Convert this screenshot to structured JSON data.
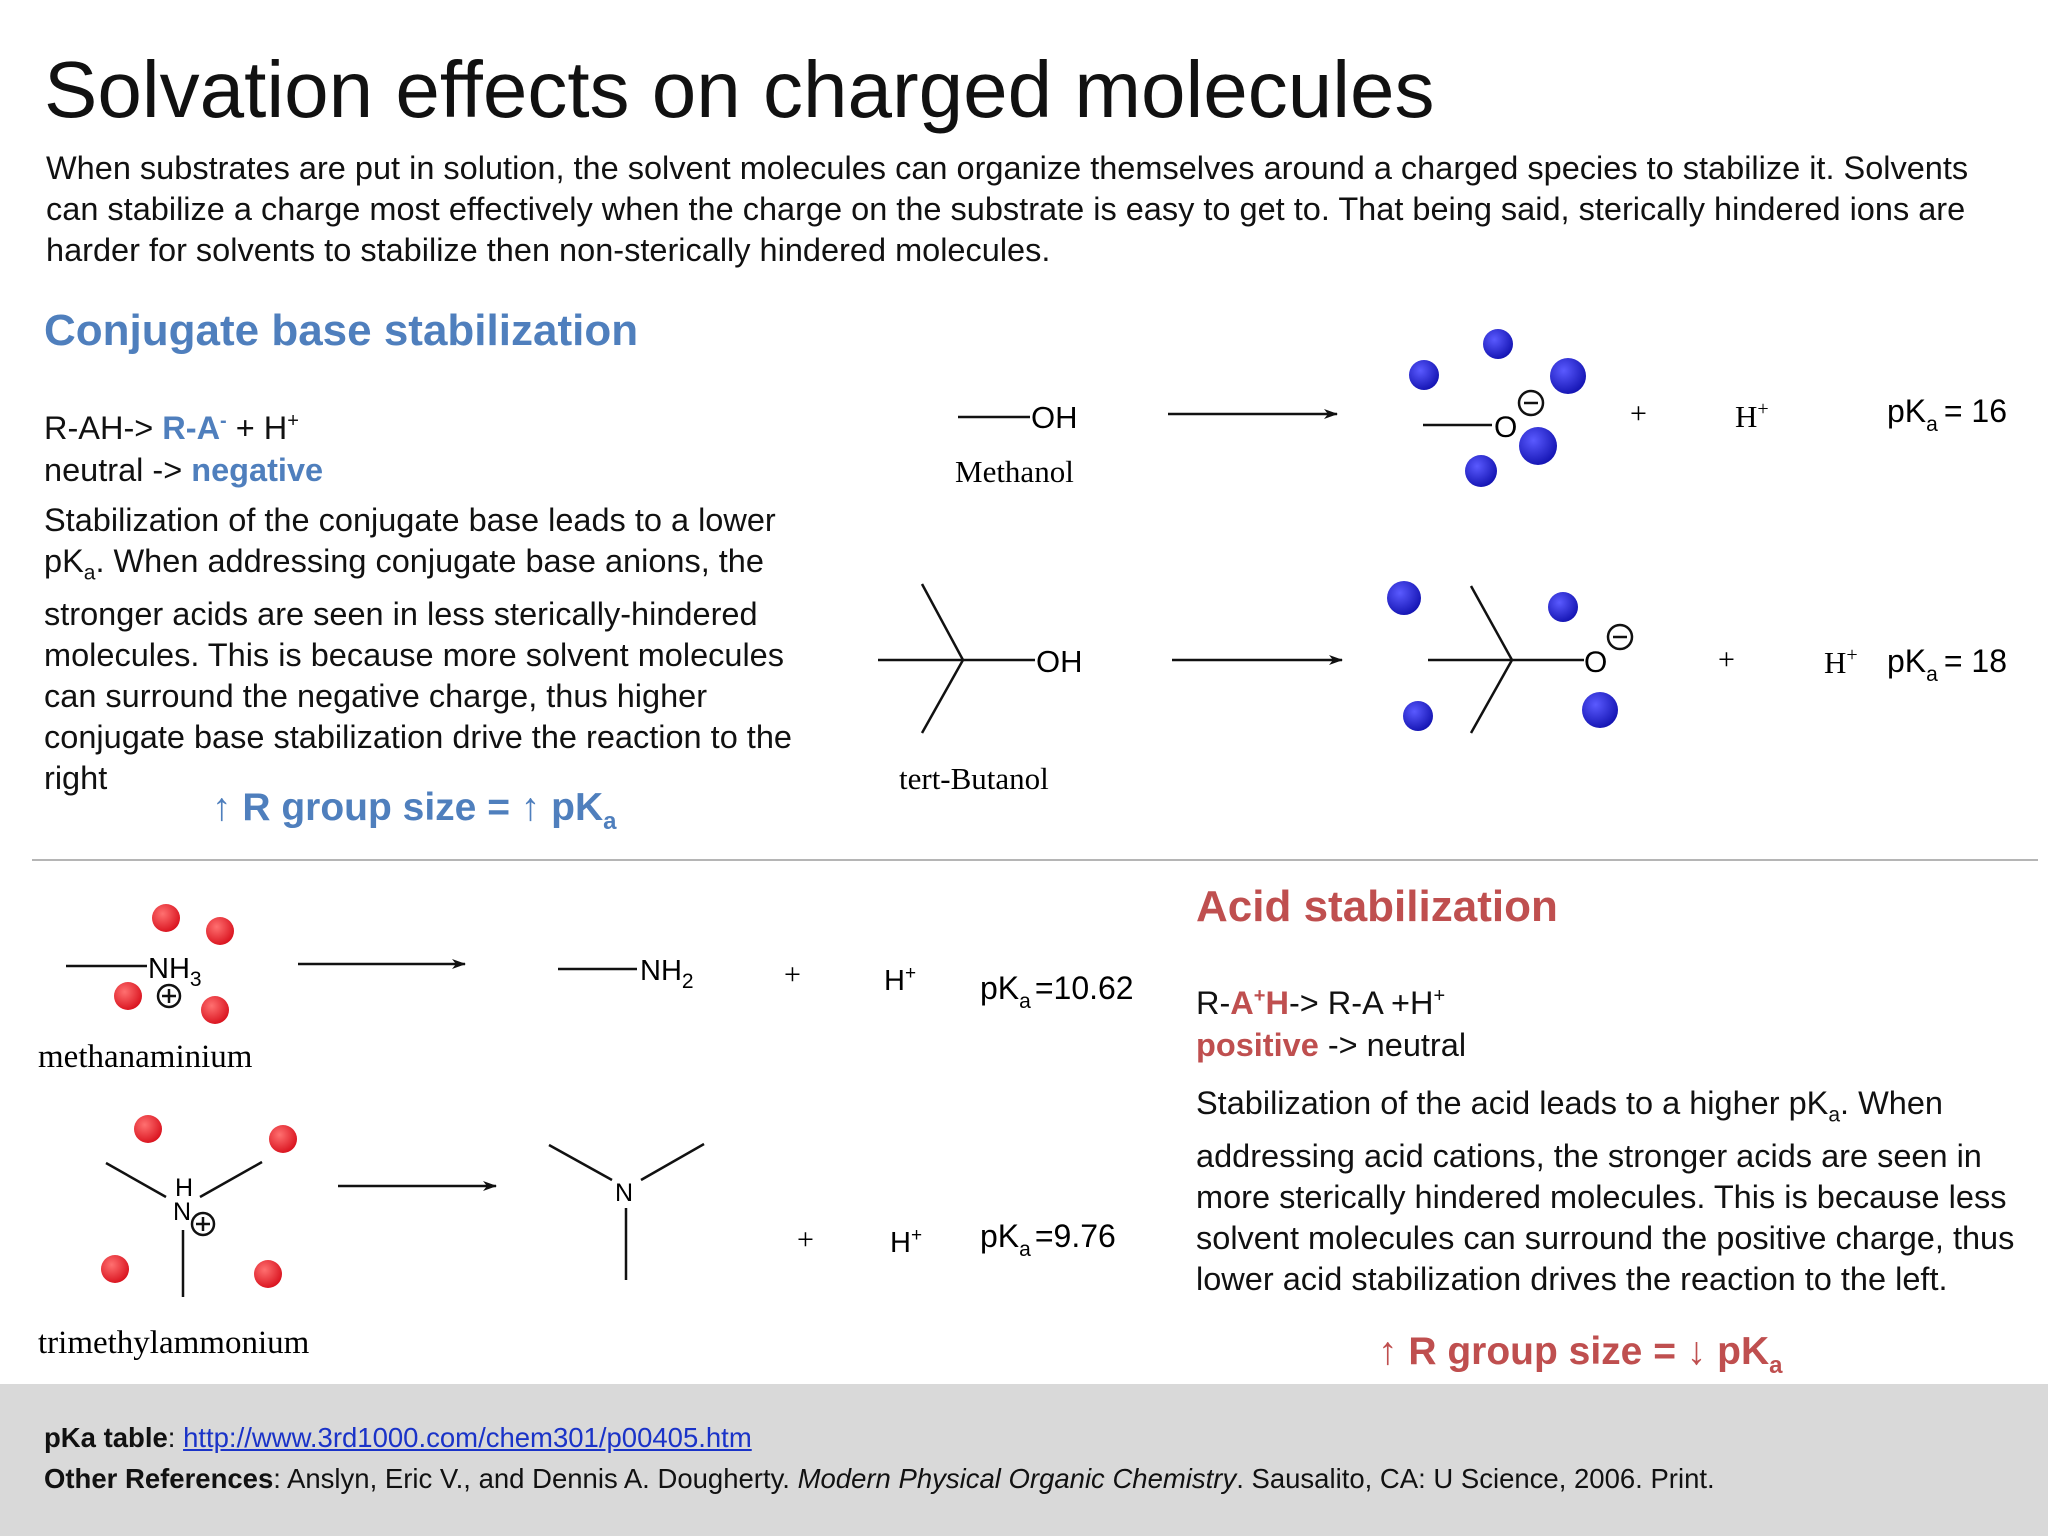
{
  "title": "Solvation effects on charged molecules",
  "intro": "When substrates are put in solution, the solvent molecules can organize themselves around a charged species to stabilize it. Solvents can stabilize a charge most effectively when the charge on the substrate is easy to get to. That being said, sterically hindered ions are harder for solvents to stabilize then non-sterically hindered molecules.",
  "conjugate_base": {
    "heading": "Conjugate base stabilization",
    "eq_left": "R-AH->",
    "eq_mid": "R-A",
    "eq_mid_sup": "-",
    "eq_right": "+ H",
    "eq_right_sup": "+",
    "change_left": "neutral ->",
    "change_right": "negative",
    "text_1": "Stabilization of the conjugate base leads to a lower pK",
    "text_sub": "a",
    "text_2": ". When addressing conjugate base anions, the stronger acids are seen in less sterically-hindered molecules. This is because more solvent molecules can surround the negative charge, thus higher conjugate base stabilization drive the reaction to the right",
    "trend": "↑ R group size = ↑ pK",
    "trend_sub": "a"
  },
  "acid": {
    "heading": "Acid stabilization",
    "eq_1": "R-",
    "eq_2": "A",
    "eq_3": "+",
    "eq_4": "H",
    "eq_5": "-> R-A +H",
    "eq_6": "+",
    "change_left": "positive",
    "change_right": "-> neutral",
    "text_1": "Stabilization of the acid leads to a higher pK",
    "text_sub": "a",
    "text_2": ". When addressing acid cations,  the stronger acids are seen in more sterically hindered molecules. This is because less solvent molecules can surround the positive charge, thus lower acid stabilization drives the reaction to the left.",
    "trend": "↑ R group size = ↓ pK",
    "trend_sub": "a"
  },
  "reactions": {
    "oh": "OH",
    "o": "O",
    "h": "H",
    "n": "N",
    "nh3": "NH",
    "nh3_sub": "3",
    "nh2": "NH",
    "nh2_sub": "2",
    "plus": "+",
    "sup_plus": "+",
    "pk": "pK",
    "pk_sub": "a",
    "methanol": "Methanol",
    "tert_butanol": "tert-Butanol",
    "methanaminium": "methanaminium",
    "trimethylammonium": "trimethylammonium",
    "pka_methanol": "= 16",
    "pka_tbutanol": "= 18",
    "pka_methanaminium": "=10.62",
    "pka_trimethylammonium": "=9.76"
  },
  "colors": {
    "blue_heading": "#4f7fbd",
    "red_heading": "#bf4f4f",
    "solvent_blue": "#1f1fc8",
    "solvent_red": "#e8202a",
    "footer_bg": "#d9d9d9",
    "link": "#1a33c8"
  },
  "footer": {
    "ref1_label": "pKa table",
    "ref1_sep": ": ",
    "ref1_url": "http://www.3rd1000.com/chem301/p00405.htm",
    "ref2_label": "Other References",
    "ref2_a": ": Anslyn, Eric V., and Dennis A. Dougherty. ",
    "ref2_title": "Modern Physical Organic Chemistry",
    "ref2_b": ". Sausalito, CA: U Science, 2006. Print."
  }
}
